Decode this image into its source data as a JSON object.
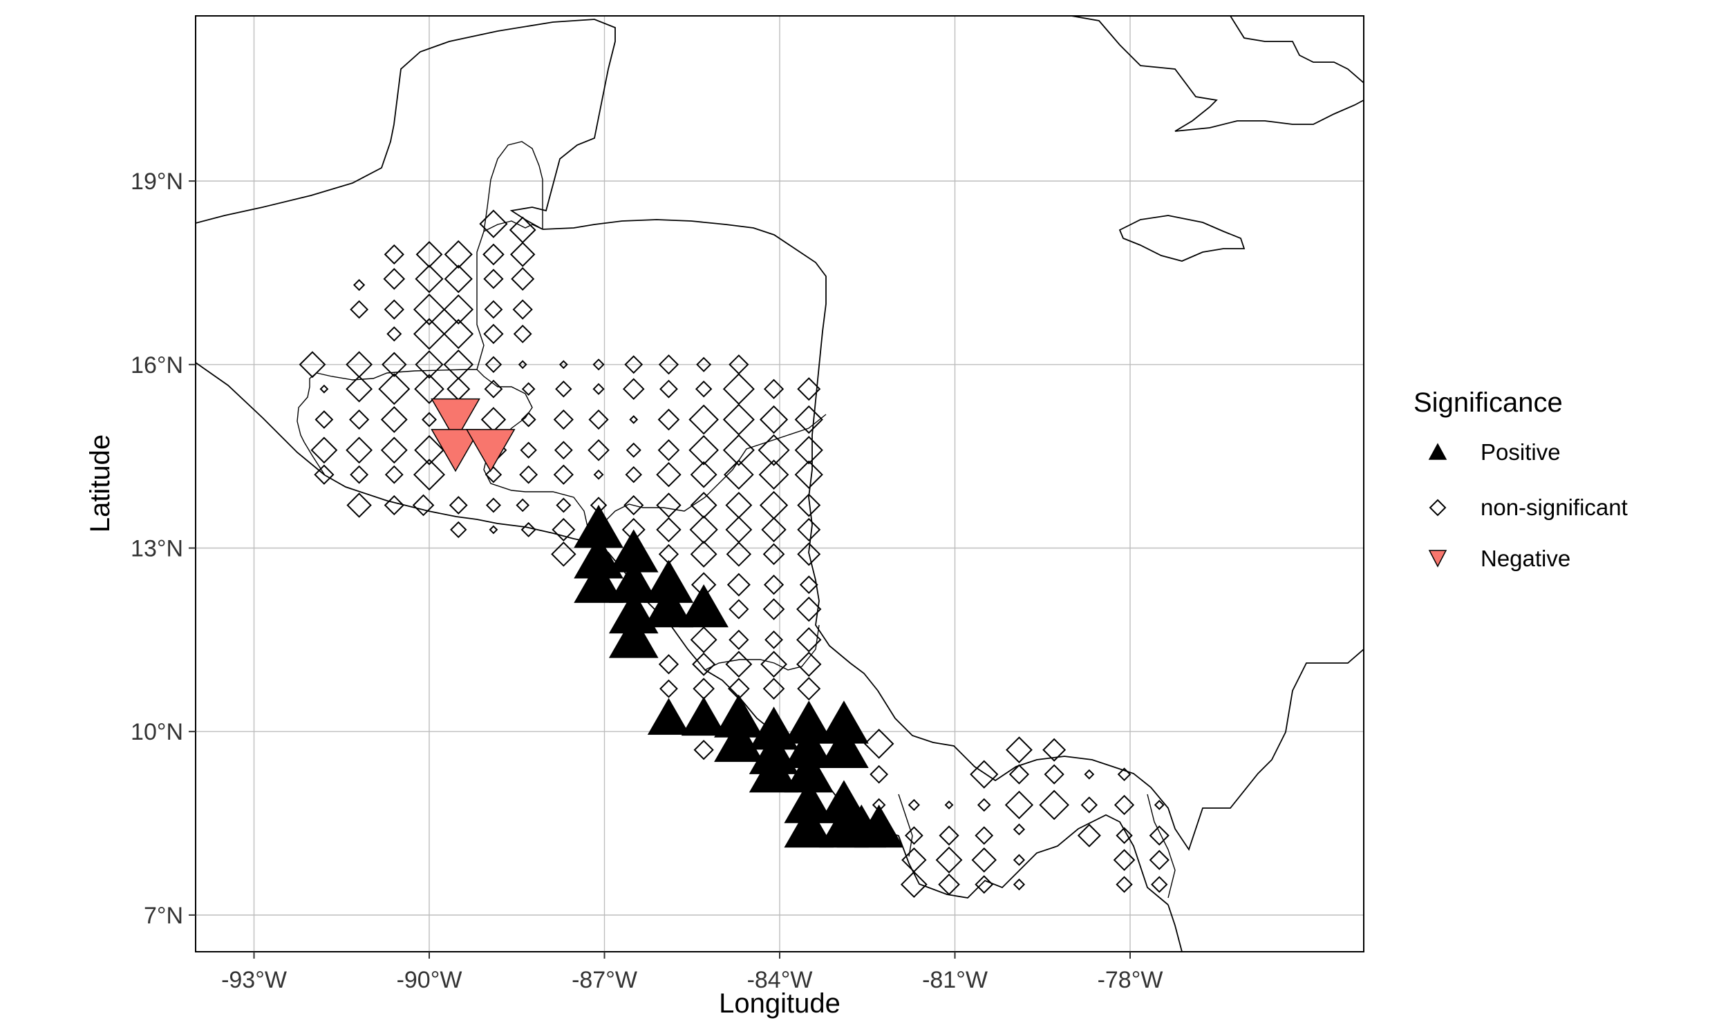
{
  "chart_data": {
    "type": "scatter",
    "subtype": "map",
    "xlabel": "Longitude",
    "ylabel": "Latitude",
    "xlim": [
      -94.0,
      -74.0
    ],
    "ylim": [
      6.4,
      21.7
    ],
    "x_ticks": [
      {
        "value": -93,
        "label": "-93°W"
      },
      {
        "value": -90,
        "label": "-90°W"
      },
      {
        "value": -87,
        "label": "-87°W"
      },
      {
        "value": -84,
        "label": "-84°W"
      },
      {
        "value": -81,
        "label": "-81°W"
      },
      {
        "value": -78,
        "label": "-78°W"
      }
    ],
    "y_ticks": [
      {
        "value": 7,
        "label": "7°N"
      },
      {
        "value": 10,
        "label": "10°N"
      },
      {
        "value": 13,
        "label": "13°N"
      },
      {
        "value": 16,
        "label": "16°N"
      },
      {
        "value": 19,
        "label": "19°N"
      }
    ],
    "grid": true,
    "legend": {
      "title": "Significance",
      "placement": "right",
      "entries": [
        {
          "label": "Positive",
          "shape": "triangle-up",
          "color": "#000000"
        },
        {
          "label": "non-significant",
          "shape": "diamond-open",
          "color": "#000000"
        },
        {
          "label": "Negative",
          "shape": "triangle-down",
          "color": "#F8766D"
        }
      ]
    },
    "colors": {
      "positive": "#000000",
      "negative": "#F8766D",
      "nonsig_stroke": "#000000"
    },
    "point_size_range": [
      0.15,
      1.0
    ],
    "series": [
      {
        "name": "Positive",
        "points": [
          [
            -87.1,
            13.3,
            1
          ],
          [
            -87.1,
            12.8,
            1
          ],
          [
            -87.1,
            12.4,
            1
          ],
          [
            -86.5,
            12.9,
            1
          ],
          [
            -86.5,
            12.4,
            1
          ],
          [
            -86.5,
            11.9,
            1
          ],
          [
            -86.5,
            11.5,
            1
          ],
          [
            -85.9,
            12.4,
            1
          ],
          [
            -85.9,
            12.0,
            1
          ],
          [
            -85.3,
            12.0,
            1
          ],
          [
            -85.9,
            10.2,
            0.85
          ],
          [
            -85.3,
            10.2,
            0.9
          ],
          [
            -84.7,
            10.2,
            1
          ],
          [
            -84.7,
            9.8,
            1
          ],
          [
            -84.1,
            10.0,
            1
          ],
          [
            -84.1,
            9.6,
            1
          ],
          [
            -84.1,
            9.3,
            1
          ],
          [
            -83.5,
            10.1,
            1
          ],
          [
            -83.5,
            9.7,
            1
          ],
          [
            -83.5,
            9.3,
            1
          ],
          [
            -83.5,
            8.8,
            1
          ],
          [
            -83.5,
            8.4,
            1
          ],
          [
            -82.9,
            10.1,
            1
          ],
          [
            -82.9,
            9.7,
            1
          ],
          [
            -82.9,
            8.8,
            1
          ],
          [
            -82.9,
            8.4,
            1
          ],
          [
            -82.6,
            8.4,
            1
          ],
          [
            -82.3,
            8.4,
            1
          ]
        ]
      },
      {
        "name": "non-significant",
        "points": [
          [
            -88.9,
            18.3,
            0.8
          ],
          [
            -88.4,
            18.2,
            0.75
          ],
          [
            -88.9,
            17.8,
            0.6
          ],
          [
            -88.4,
            17.8,
            0.7
          ],
          [
            -88.9,
            17.4,
            0.55
          ],
          [
            -88.4,
            17.4,
            0.65
          ],
          [
            -88.9,
            16.9,
            0.5
          ],
          [
            -88.4,
            16.9,
            0.55
          ],
          [
            -88.4,
            16.5,
            0.5
          ],
          [
            -88.9,
            16.5,
            0.55
          ],
          [
            -88.9,
            16.0,
            0.45
          ],
          [
            -88.4,
            16.0,
            0.15
          ],
          [
            -90.6,
            17.8,
            0.55
          ],
          [
            -90.0,
            17.8,
            0.75
          ],
          [
            -89.5,
            17.8,
            0.8
          ],
          [
            -91.2,
            17.3,
            0.3
          ],
          [
            -90.6,
            17.4,
            0.6
          ],
          [
            -90.0,
            17.4,
            0.8
          ],
          [
            -89.5,
            17.4,
            0.8
          ],
          [
            -91.2,
            16.9,
            0.5
          ],
          [
            -90.6,
            16.9,
            0.55
          ],
          [
            -90.0,
            16.9,
            0.9
          ],
          [
            -89.5,
            16.9,
            0.85
          ],
          [
            -90.6,
            16.5,
            0.4
          ],
          [
            -90.0,
            16.5,
            0.9
          ],
          [
            -89.5,
            16.5,
            0.85
          ],
          [
            -92.0,
            16.0,
            0.75
          ],
          [
            -91.2,
            16.0,
            0.75
          ],
          [
            -90.6,
            16.0,
            0.7
          ],
          [
            -90.0,
            16.0,
            0.8
          ],
          [
            -89.5,
            16.0,
            0.85
          ],
          [
            -91.8,
            15.6,
            0.2
          ],
          [
            -91.2,
            15.6,
            0.75
          ],
          [
            -90.6,
            15.6,
            0.9
          ],
          [
            -90.0,
            15.6,
            0.85
          ],
          [
            -89.5,
            15.6,
            0.65
          ],
          [
            -88.9,
            15.6,
            0.5
          ],
          [
            -91.8,
            15.1,
            0.5
          ],
          [
            -91.2,
            15.1,
            0.55
          ],
          [
            -90.6,
            15.1,
            0.75
          ],
          [
            -90.0,
            15.1,
            0.4
          ],
          [
            -88.9,
            15.1,
            0.7
          ],
          [
            -91.8,
            14.6,
            0.75
          ],
          [
            -91.2,
            14.6,
            0.75
          ],
          [
            -90.6,
            14.6,
            0.75
          ],
          [
            -90.0,
            14.6,
            0.85
          ],
          [
            -88.9,
            14.6,
            0.75
          ],
          [
            -91.8,
            14.2,
            0.55
          ],
          [
            -91.2,
            14.2,
            0.5
          ],
          [
            -90.6,
            14.2,
            0.5
          ],
          [
            -90.0,
            14.2,
            0.9
          ],
          [
            -88.9,
            14.2,
            0.45
          ],
          [
            -91.2,
            13.7,
            0.7
          ],
          [
            -90.6,
            13.7,
            0.55
          ],
          [
            -90.1,
            13.7,
            0.6
          ],
          [
            -89.5,
            13.7,
            0.5
          ],
          [
            -88.9,
            13.7,
            0.4
          ],
          [
            -88.4,
            13.7,
            0.35
          ],
          [
            -89.5,
            13.3,
            0.45
          ],
          [
            -88.9,
            13.3,
            0.2
          ],
          [
            -88.3,
            13.3,
            0.4
          ],
          [
            -87.7,
            16.0,
            0.2
          ],
          [
            -87.1,
            16.0,
            0.3
          ],
          [
            -86.5,
            16.0,
            0.5
          ],
          [
            -85.9,
            16.0,
            0.55
          ],
          [
            -85.3,
            16.0,
            0.4
          ],
          [
            -84.7,
            16.0,
            0.55
          ],
          [
            -88.3,
            15.6,
            0.35
          ],
          [
            -87.7,
            15.6,
            0.45
          ],
          [
            -87.1,
            15.6,
            0.3
          ],
          [
            -86.5,
            15.6,
            0.6
          ],
          [
            -85.9,
            15.6,
            0.5
          ],
          [
            -85.3,
            15.6,
            0.45
          ],
          [
            -84.7,
            15.6,
            0.9
          ],
          [
            -84.1,
            15.6,
            0.55
          ],
          [
            -83.5,
            15.6,
            0.65
          ],
          [
            -88.3,
            15.1,
            0.4
          ],
          [
            -87.7,
            15.1,
            0.55
          ],
          [
            -87.1,
            15.1,
            0.55
          ],
          [
            -86.5,
            15.1,
            0.2
          ],
          [
            -85.9,
            15.1,
            0.6
          ],
          [
            -85.3,
            15.1,
            0.85
          ],
          [
            -84.7,
            15.1,
            0.9
          ],
          [
            -84.1,
            15.1,
            0.8
          ],
          [
            -83.5,
            15.1,
            0.8
          ],
          [
            -88.3,
            14.6,
            0.45
          ],
          [
            -87.7,
            14.6,
            0.5
          ],
          [
            -87.1,
            14.6,
            0.6
          ],
          [
            -86.5,
            14.6,
            0.4
          ],
          [
            -85.9,
            14.6,
            0.6
          ],
          [
            -85.3,
            14.6,
            0.85
          ],
          [
            -84.7,
            14.6,
            0.9
          ],
          [
            -84.1,
            14.6,
            0.9
          ],
          [
            -83.5,
            14.6,
            0.8
          ],
          [
            -88.3,
            14.2,
            0.5
          ],
          [
            -87.7,
            14.2,
            0.55
          ],
          [
            -87.1,
            14.2,
            0.25
          ],
          [
            -86.5,
            14.2,
            0.45
          ],
          [
            -85.9,
            14.2,
            0.7
          ],
          [
            -85.3,
            14.2,
            0.75
          ],
          [
            -84.7,
            14.2,
            0.85
          ],
          [
            -84.1,
            14.2,
            0.85
          ],
          [
            -83.5,
            14.2,
            0.8
          ],
          [
            -87.7,
            13.7,
            0.4
          ],
          [
            -87.1,
            13.7,
            0.45
          ],
          [
            -86.5,
            13.7,
            0.55
          ],
          [
            -85.9,
            13.7,
            0.7
          ],
          [
            -85.3,
            13.7,
            0.75
          ],
          [
            -84.7,
            13.7,
            0.75
          ],
          [
            -84.1,
            13.7,
            0.8
          ],
          [
            -83.5,
            13.7,
            0.65
          ],
          [
            -87.7,
            13.3,
            0.65
          ],
          [
            -86.5,
            13.3,
            0.65
          ],
          [
            -85.9,
            13.3,
            0.7
          ],
          [
            -85.3,
            13.3,
            0.8
          ],
          [
            -84.7,
            13.3,
            0.75
          ],
          [
            -84.1,
            13.3,
            0.7
          ],
          [
            -83.5,
            13.3,
            0.65
          ],
          [
            -87.7,
            12.9,
            0.7
          ],
          [
            -85.9,
            12.9,
            0.55
          ],
          [
            -85.3,
            12.9,
            0.75
          ],
          [
            -84.7,
            12.9,
            0.7
          ],
          [
            -84.1,
            12.9,
            0.6
          ],
          [
            -83.5,
            12.9,
            0.65
          ],
          [
            -85.3,
            12.4,
            0.7
          ],
          [
            -84.7,
            12.4,
            0.65
          ],
          [
            -84.1,
            12.4,
            0.55
          ],
          [
            -83.5,
            12.4,
            0.5
          ],
          [
            -84.7,
            12.0,
            0.55
          ],
          [
            -84.1,
            12.0,
            0.6
          ],
          [
            -83.5,
            12.0,
            0.7
          ],
          [
            -85.3,
            11.5,
            0.75
          ],
          [
            -84.7,
            11.5,
            0.55
          ],
          [
            -84.1,
            11.5,
            0.5
          ],
          [
            -83.5,
            11.5,
            0.7
          ],
          [
            -85.9,
            11.1,
            0.55
          ],
          [
            -85.3,
            11.1,
            0.65
          ],
          [
            -84.7,
            11.1,
            0.75
          ],
          [
            -84.1,
            11.1,
            0.75
          ],
          [
            -83.5,
            11.1,
            0.7
          ],
          [
            -85.9,
            10.7,
            0.5
          ],
          [
            -85.3,
            10.7,
            0.6
          ],
          [
            -84.7,
            10.7,
            0.6
          ],
          [
            -84.1,
            10.7,
            0.6
          ],
          [
            -83.5,
            10.7,
            0.65
          ],
          [
            -85.3,
            9.7,
            0.55
          ],
          [
            -82.3,
            9.8,
            0.85
          ],
          [
            -82.3,
            9.3,
            0.5
          ],
          [
            -82.3,
            8.8,
            0.35
          ],
          [
            -81.7,
            8.8,
            0.3
          ],
          [
            -81.7,
            8.3,
            0.5
          ],
          [
            -81.7,
            7.9,
            0.7
          ],
          [
            -81.7,
            7.5,
            0.75
          ],
          [
            -81.1,
            8.8,
            0.15
          ],
          [
            -81.1,
            8.3,
            0.55
          ],
          [
            -81.1,
            7.9,
            0.75
          ],
          [
            -81.1,
            7.5,
            0.6
          ],
          [
            -80.5,
            9.3,
            0.8
          ],
          [
            -80.5,
            8.8,
            0.35
          ],
          [
            -80.5,
            8.3,
            0.5
          ],
          [
            -80.5,
            7.9,
            0.7
          ],
          [
            -80.5,
            7.5,
            0.5
          ],
          [
            -79.9,
            9.7,
            0.75
          ],
          [
            -79.9,
            9.3,
            0.55
          ],
          [
            -79.9,
            8.8,
            0.8
          ],
          [
            -79.9,
            8.4,
            0.3
          ],
          [
            -79.9,
            7.9,
            0.3
          ],
          [
            -79.9,
            7.5,
            0.3
          ],
          [
            -79.3,
            9.7,
            0.65
          ],
          [
            -79.3,
            9.3,
            0.55
          ],
          [
            -79.3,
            8.8,
            0.85
          ],
          [
            -78.7,
            9.3,
            0.25
          ],
          [
            -78.7,
            8.8,
            0.45
          ],
          [
            -78.7,
            8.3,
            0.65
          ],
          [
            -78.1,
            9.3,
            0.35
          ],
          [
            -78.1,
            8.8,
            0.55
          ],
          [
            -78.1,
            8.3,
            0.45
          ],
          [
            -78.1,
            7.9,
            0.6
          ],
          [
            -78.1,
            7.5,
            0.45
          ],
          [
            -77.5,
            8.8,
            0.25
          ],
          [
            -77.5,
            8.3,
            0.55
          ],
          [
            -77.5,
            7.9,
            0.55
          ],
          [
            -77.5,
            7.5,
            0.45
          ]
        ]
      },
      {
        "name": "Negative",
        "points": [
          [
            -89.55,
            15.15,
            1
          ],
          [
            -89.55,
            14.65,
            1
          ],
          [
            -88.95,
            14.65,
            1
          ]
        ]
      }
    ]
  }
}
